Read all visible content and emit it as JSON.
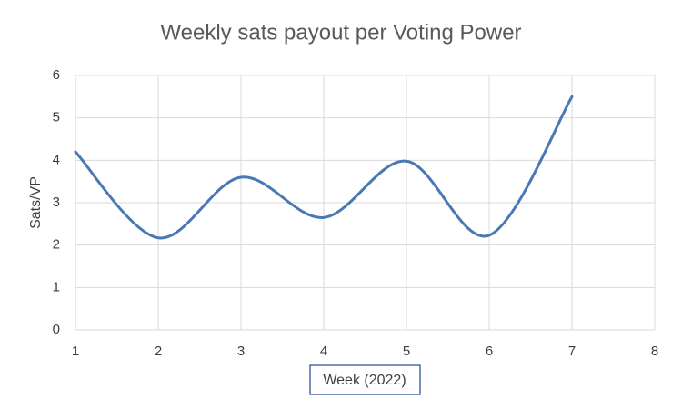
{
  "chart_data": {
    "type": "line",
    "title": "Weekly sats payout per Voting Power",
    "x_label": "Week (2022)",
    "y_label": "Sats/VP",
    "x": [
      1,
      2,
      3,
      4,
      5,
      6,
      7
    ],
    "series": [
      {
        "name": "Sats/VP",
        "color": "#4a78b4",
        "values": [
          4.2,
          2.17,
          3.6,
          2.65,
          3.98,
          2.23,
          5.5
        ]
      }
    ],
    "xlim": [
      1,
      8
    ],
    "xticks": [
      1,
      2,
      3,
      4,
      5,
      6,
      7,
      8
    ],
    "ylim": [
      0,
      6
    ],
    "yticks": [
      0,
      1,
      2,
      3,
      4,
      5,
      6
    ],
    "grid": true,
    "smooth": true
  }
}
